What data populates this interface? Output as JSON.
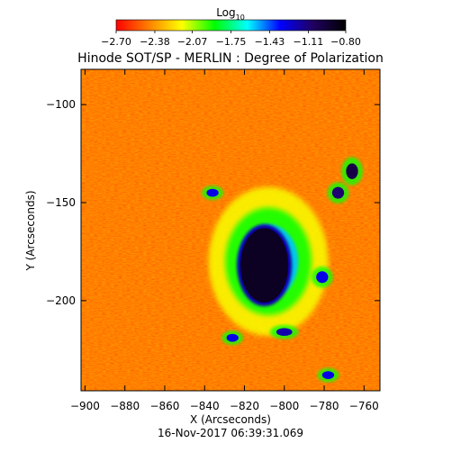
{
  "chart_data": {
    "type": "heatmap",
    "title": "Hinode SOT/SP - MERLIN : Degree of Polarization",
    "xlabel": "X (Arcseconds)",
    "ylabel": "Y (Arcseconds)",
    "timestamp": "16-Nov-2017 06:39:31.069",
    "colorbar": {
      "label_main": "Log",
      "label_sub": "10",
      "min": -2.7,
      "max": -0.8,
      "tick_values": [
        -2.7,
        -2.38,
        -2.07,
        -1.75,
        -1.43,
        -1.11,
        -0.8
      ],
      "tick_labels": [
        "−2.70",
        "−2.38",
        "−2.07",
        "−1.75",
        "−1.43",
        "−1.11",
        "−0.80"
      ],
      "colormap": [
        "#ff0000",
        "#ff8000",
        "#ffff00",
        "#00ff00",
        "#00ffff",
        "#0000ff",
        "#200060",
        "#000000"
      ]
    },
    "xlim": [
      -902,
      -752
    ],
    "ylim": [
      -246,
      -82
    ],
    "xticks": [
      -900,
      -880,
      -860,
      -840,
      -820,
      -800,
      -780,
      -760
    ],
    "xtick_labels": [
      "−900",
      "−880",
      "−860",
      "−840",
      "−820",
      "−800",
      "−780",
      "−760"
    ],
    "yticks": [
      -100,
      -150,
      -200
    ],
    "ytick_labels": [
      "−100",
      "−150",
      "−200"
    ],
    "features": [
      {
        "kind": "core",
        "x": -810,
        "y": -182,
        "rx": 12,
        "ry": 19,
        "value": -0.9
      },
      {
        "kind": "halo",
        "x": -808,
        "y": -180,
        "rx": 30,
        "ry": 38,
        "value": -1.9
      },
      {
        "kind": "patch",
        "x": -766,
        "y": -134,
        "rx": 3,
        "ry": 4,
        "value": -1.0
      },
      {
        "kind": "patch",
        "x": -773,
        "y": -145,
        "rx": 3,
        "ry": 3,
        "value": -1.1
      },
      {
        "kind": "patch",
        "x": -836,
        "y": -145,
        "rx": 3,
        "ry": 2,
        "value": -1.3
      },
      {
        "kind": "patch",
        "x": -826,
        "y": -219,
        "rx": 3,
        "ry": 2,
        "value": -1.3
      },
      {
        "kind": "patch",
        "x": -800,
        "y": -216,
        "rx": 4,
        "ry": 2,
        "value": -1.2
      },
      {
        "kind": "patch",
        "x": -781,
        "y": -188,
        "rx": 3,
        "ry": 3,
        "value": -1.3
      },
      {
        "kind": "patch",
        "x": -778,
        "y": -238,
        "rx": 3,
        "ry": 2,
        "value": -1.3
      }
    ]
  }
}
